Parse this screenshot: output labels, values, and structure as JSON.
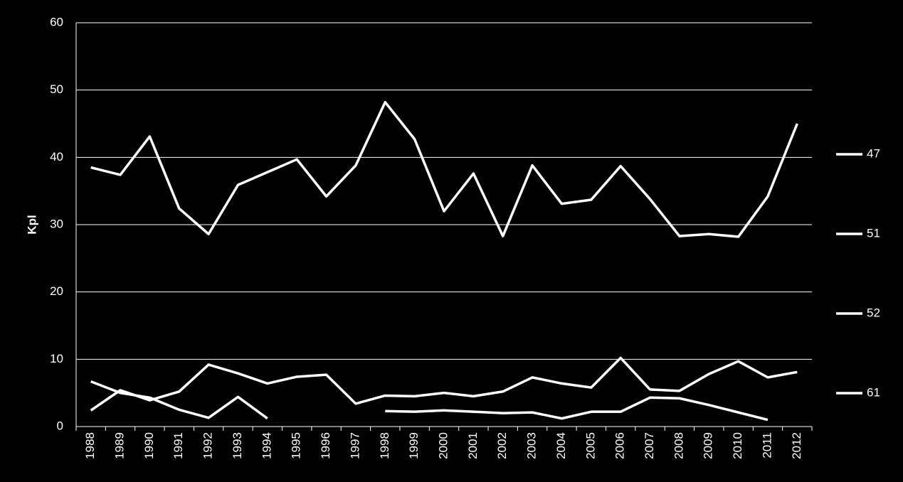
{
  "chart_data": {
    "type": "line",
    "y_label": "Kpl",
    "categories": [
      "1988",
      "1989",
      "1990",
      "1991",
      "1992",
      "1993",
      "1994",
      "1995",
      "1996",
      "1997",
      "1998",
      "1999",
      "2000",
      "2001",
      "2002",
      "2003",
      "2004",
      "2005",
      "2006",
      "2007",
      "2008",
      "2009",
      "2010",
      "2011",
      "2012"
    ],
    "series": [
      {
        "name": "47",
        "color": "#ffffff",
        "values": [
          38.5,
          37.4,
          43.1,
          32.4,
          28.6,
          35.9,
          37.8,
          39.7,
          34.2,
          38.8,
          48.2,
          42.7,
          32.0,
          37.6,
          28.3,
          38.8,
          33.1,
          33.7,
          38.7,
          33.8,
          28.3,
          28.6,
          28.2,
          34.2,
          45.0
        ]
      },
      {
        "name": "51",
        "color": "#ffffff",
        "values": [
          2.4,
          5.4,
          3.9,
          5.2,
          9.2,
          7.9,
          6.4,
          7.4,
          7.7,
          3.4,
          4.6,
          4.5,
          5.0,
          4.5,
          5.2,
          7.3,
          6.4,
          5.8,
          10.2,
          5.5,
          5.3,
          7.8,
          9.7,
          7.3,
          8.1
        ]
      },
      {
        "name": "52",
        "color": "#ffffff",
        "values": [
          6.7,
          5.0,
          4.3,
          2.5,
          1.3,
          4.4,
          1.2,
          null,
          null,
          null,
          null,
          null,
          null,
          null,
          null,
          null,
          null,
          null,
          null,
          null,
          null,
          null,
          null,
          null,
          null
        ]
      },
      {
        "name": "61",
        "color": "#ffffff",
        "values": [
          null,
          null,
          null,
          null,
          null,
          null,
          null,
          null,
          null,
          null,
          2.3,
          2.2,
          2.4,
          2.2,
          2.0,
          2.1,
          1.2,
          2.2,
          2.2,
          4.3,
          4.2,
          3.2,
          2.1,
          1.0,
          null
        ]
      }
    ],
    "ylim": [
      0,
      60
    ],
    "yticks": [
      0,
      10,
      20,
      30,
      40,
      50,
      60
    ],
    "grid": true,
    "legend": "right"
  }
}
